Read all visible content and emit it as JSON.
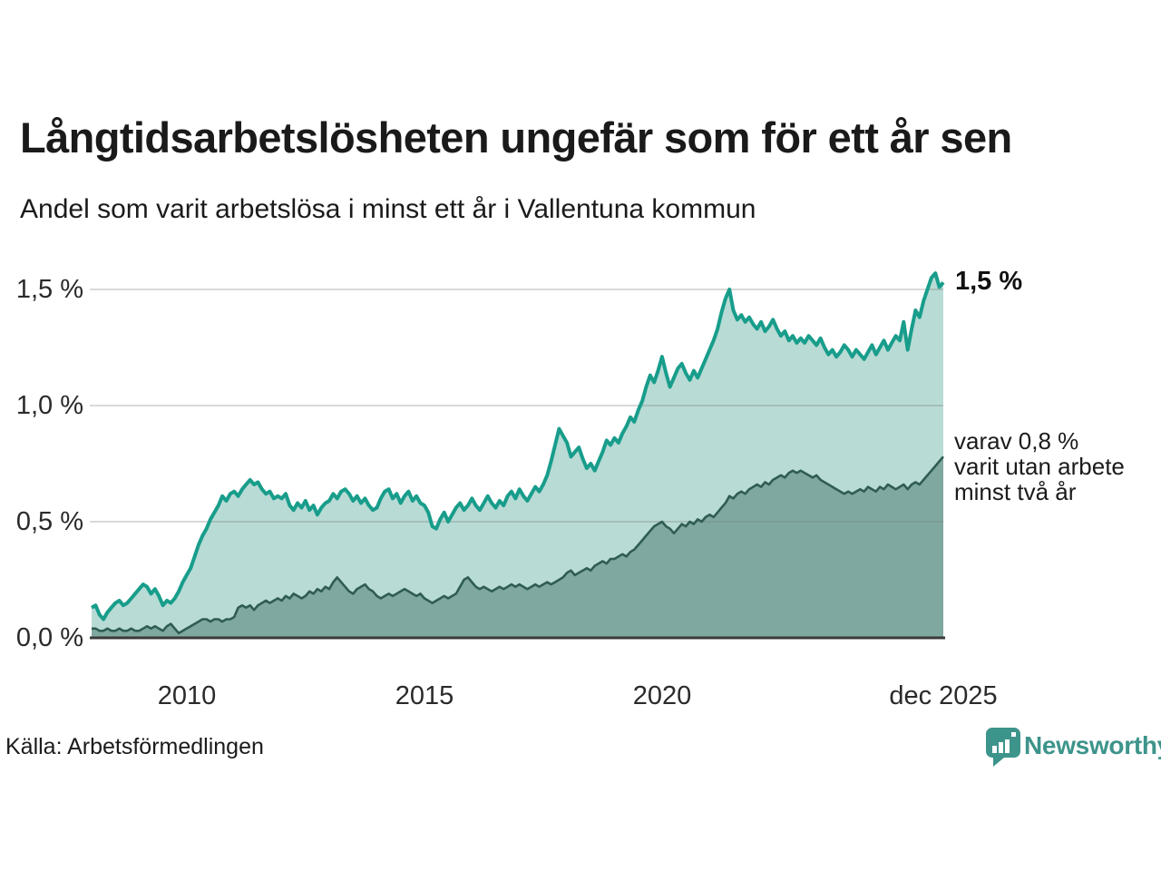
{
  "header": {
    "title": "Långtidsarbetslösheten ungefär som för ett år sen",
    "subtitle": "Andel som varit arbetslösa i minst ett år i Vallentuna kommun"
  },
  "axes": {
    "y_ticks": [
      "1,5 %",
      "1,0 %",
      "0,5 %",
      "0,0 %"
    ],
    "x_ticks": [
      "2010",
      "2015",
      "2020",
      "dec 2025"
    ]
  },
  "annotations": {
    "latest_total": "1,5 %",
    "secondary_line1": "varav 0,8 %",
    "secondary_line2": "varit utan arbete",
    "secondary_line3": "minst två år"
  },
  "footer": {
    "source": "Källa: Arbetsförmedlingen",
    "brand": "Newsworthy"
  },
  "colors": {
    "total_line": "#189d8b",
    "total_fill": "#b8dbd5",
    "two_year_line": "#2f5c53",
    "two_year_fill": "#7fa8a0",
    "gridline": "rgba(120,120,120,0.28)",
    "axis_line": "#3a3a3a",
    "brand_teal": "#3d948b"
  },
  "chart_data": {
    "type": "area",
    "title": "Långtidsarbetslösheten ungefär som för ett år sen",
    "subtitle": "Andel som varit arbetslösa i minst ett år i Vallentuna kommun",
    "unit": "%",
    "interval": "monthly",
    "x_start_year": 2008.0,
    "x_end_label": "dec 2025",
    "ylim": [
      0,
      1.6
    ],
    "y_gridlines": [
      0.5,
      1.0,
      1.5
    ],
    "y_tick_values": [
      1.5,
      1.0,
      0.5,
      0.0
    ],
    "x_tick_years": [
      2010.0,
      2015.0,
      2020.0,
      2025.917
    ],
    "x_tick_labels": [
      "2010",
      "2015",
      "2020",
      "dec 2025"
    ],
    "legend_position": "end-of-line annotations",
    "grid": true,
    "series": [
      {
        "name": "Andel arbetslösa minst ett år (totalt)",
        "latest_value": 1.5,
        "line_color": "#189d8b",
        "fill_color": "#b8dbd5",
        "values": [
          0.13,
          0.14,
          0.1,
          0.08,
          0.11,
          0.13,
          0.15,
          0.16,
          0.14,
          0.15,
          0.17,
          0.19,
          0.21,
          0.23,
          0.22,
          0.19,
          0.21,
          0.18,
          0.14,
          0.16,
          0.15,
          0.17,
          0.2,
          0.24,
          0.27,
          0.3,
          0.35,
          0.4,
          0.44,
          0.47,
          0.51,
          0.54,
          0.57,
          0.61,
          0.59,
          0.62,
          0.63,
          0.61,
          0.64,
          0.66,
          0.68,
          0.66,
          0.67,
          0.64,
          0.62,
          0.63,
          0.6,
          0.61,
          0.6,
          0.62,
          0.57,
          0.55,
          0.58,
          0.56,
          0.59,
          0.55,
          0.57,
          0.53,
          0.56,
          0.58,
          0.59,
          0.62,
          0.6,
          0.63,
          0.64,
          0.62,
          0.59,
          0.61,
          0.58,
          0.6,
          0.57,
          0.55,
          0.56,
          0.6,
          0.63,
          0.64,
          0.6,
          0.62,
          0.58,
          0.61,
          0.63,
          0.59,
          0.61,
          0.58,
          0.57,
          0.54,
          0.48,
          0.47,
          0.51,
          0.54,
          0.5,
          0.53,
          0.56,
          0.58,
          0.55,
          0.57,
          0.6,
          0.57,
          0.55,
          0.58,
          0.61,
          0.58,
          0.56,
          0.59,
          0.57,
          0.61,
          0.63,
          0.6,
          0.64,
          0.61,
          0.59,
          0.62,
          0.65,
          0.63,
          0.66,
          0.7,
          0.76,
          0.83,
          0.9,
          0.87,
          0.84,
          0.78,
          0.8,
          0.82,
          0.77,
          0.73,
          0.75,
          0.72,
          0.76,
          0.8,
          0.85,
          0.83,
          0.86,
          0.84,
          0.88,
          0.91,
          0.95,
          0.93,
          0.98,
          1.02,
          1.08,
          1.13,
          1.1,
          1.15,
          1.21,
          1.14,
          1.08,
          1.12,
          1.16,
          1.18,
          1.14,
          1.11,
          1.15,
          1.12,
          1.16,
          1.2,
          1.24,
          1.28,
          1.33,
          1.4,
          1.46,
          1.5,
          1.41,
          1.37,
          1.39,
          1.36,
          1.38,
          1.35,
          1.33,
          1.36,
          1.32,
          1.34,
          1.37,
          1.33,
          1.3,
          1.32,
          1.28,
          1.3,
          1.27,
          1.29,
          1.27,
          1.3,
          1.28,
          1.26,
          1.29,
          1.25,
          1.22,
          1.24,
          1.21,
          1.23,
          1.26,
          1.24,
          1.21,
          1.24,
          1.22,
          1.2,
          1.23,
          1.26,
          1.22,
          1.25,
          1.28,
          1.24,
          1.27,
          1.3,
          1.28,
          1.36,
          1.24,
          1.33,
          1.41,
          1.38,
          1.45,
          1.5,
          1.55,
          1.57,
          1.51,
          1.53
        ]
      },
      {
        "name": "varav utan arbete minst två år",
        "latest_value": 0.8,
        "line_color": "#2f5c53",
        "fill_color": "#7fa8a0",
        "values": [
          0.04,
          0.04,
          0.03,
          0.03,
          0.04,
          0.03,
          0.03,
          0.04,
          0.03,
          0.03,
          0.04,
          0.03,
          0.03,
          0.04,
          0.05,
          0.04,
          0.05,
          0.04,
          0.03,
          0.05,
          0.06,
          0.04,
          0.02,
          0.03,
          0.04,
          0.05,
          0.06,
          0.07,
          0.08,
          0.08,
          0.07,
          0.08,
          0.08,
          0.07,
          0.08,
          0.08,
          0.09,
          0.13,
          0.14,
          0.13,
          0.14,
          0.12,
          0.14,
          0.15,
          0.16,
          0.15,
          0.16,
          0.17,
          0.16,
          0.18,
          0.17,
          0.19,
          0.18,
          0.17,
          0.18,
          0.2,
          0.19,
          0.21,
          0.2,
          0.22,
          0.21,
          0.24,
          0.26,
          0.24,
          0.22,
          0.2,
          0.19,
          0.21,
          0.22,
          0.23,
          0.21,
          0.2,
          0.18,
          0.17,
          0.18,
          0.19,
          0.18,
          0.19,
          0.2,
          0.21,
          0.2,
          0.19,
          0.18,
          0.19,
          0.17,
          0.16,
          0.15,
          0.16,
          0.17,
          0.18,
          0.17,
          0.18,
          0.19,
          0.22,
          0.25,
          0.26,
          0.24,
          0.22,
          0.21,
          0.22,
          0.21,
          0.2,
          0.21,
          0.22,
          0.21,
          0.22,
          0.23,
          0.22,
          0.23,
          0.22,
          0.21,
          0.22,
          0.23,
          0.22,
          0.23,
          0.24,
          0.23,
          0.24,
          0.25,
          0.26,
          0.28,
          0.29,
          0.27,
          0.28,
          0.29,
          0.3,
          0.29,
          0.31,
          0.32,
          0.33,
          0.32,
          0.34,
          0.34,
          0.35,
          0.36,
          0.35,
          0.37,
          0.38,
          0.4,
          0.42,
          0.44,
          0.46,
          0.48,
          0.49,
          0.5,
          0.48,
          0.47,
          0.45,
          0.47,
          0.49,
          0.48,
          0.5,
          0.49,
          0.51,
          0.5,
          0.52,
          0.53,
          0.52,
          0.54,
          0.56,
          0.58,
          0.61,
          0.6,
          0.62,
          0.63,
          0.62,
          0.64,
          0.65,
          0.66,
          0.65,
          0.67,
          0.66,
          0.68,
          0.69,
          0.7,
          0.69,
          0.71,
          0.72,
          0.71,
          0.72,
          0.71,
          0.7,
          0.69,
          0.7,
          0.68,
          0.67,
          0.66,
          0.65,
          0.64,
          0.63,
          0.62,
          0.63,
          0.62,
          0.63,
          0.64,
          0.63,
          0.65,
          0.64,
          0.63,
          0.65,
          0.64,
          0.66,
          0.65,
          0.64,
          0.65,
          0.66,
          0.64,
          0.66,
          0.67,
          0.66,
          0.68,
          0.7,
          0.72,
          0.74,
          0.76,
          0.78
        ]
      }
    ]
  }
}
